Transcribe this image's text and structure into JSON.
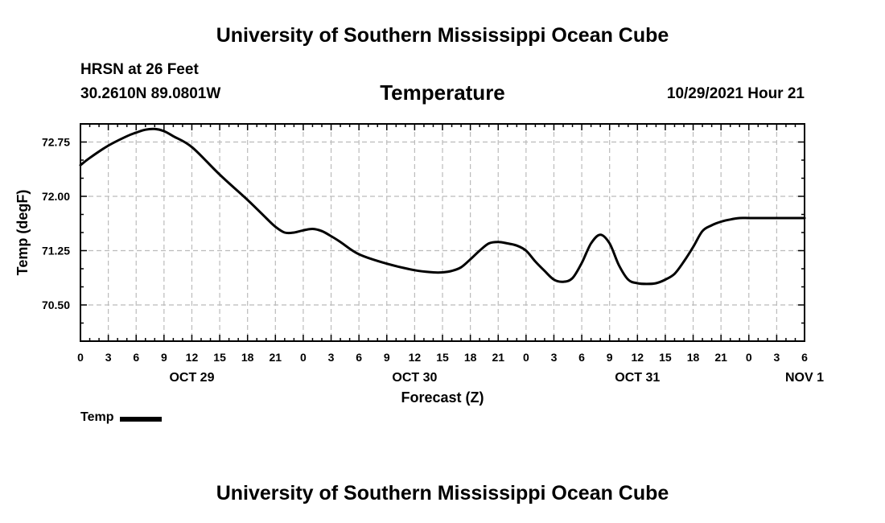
{
  "header": {
    "title": "University of Southern Mississippi Ocean Cube",
    "station": "HRSN at 26 Feet",
    "coordinates": "30.2610N  89.0801W",
    "variable": "Temperature",
    "timestamp": "10/29/2021 Hour 21"
  },
  "footer": {
    "title": "University of Southern Mississippi Ocean Cube"
  },
  "chart_data": {
    "type": "line",
    "title": "Temperature",
    "xlabel": "Forecast (Z)",
    "ylabel": "Temp (degF)",
    "xlim": [
      0,
      78
    ],
    "ylim": [
      70.0,
      73.0
    ],
    "x_tick_labels": [
      "0",
      "3",
      "6",
      "9",
      "12",
      "15",
      "18",
      "21",
      "0",
      "3",
      "6",
      "9",
      "12",
      "15",
      "18",
      "21",
      "0",
      "3",
      "6",
      "9",
      "12",
      "15",
      "18",
      "21",
      "0",
      "3",
      "6"
    ],
    "y_ticks": [
      70.5,
      71.25,
      72.0,
      72.75
    ],
    "y_tick_labels": [
      "70.50",
      "71.25",
      "72.00",
      "72.75"
    ],
    "date_labels": [
      {
        "label": "OCT 29",
        "hour": 12
      },
      {
        "label": "OCT 30",
        "hour": 36
      },
      {
        "label": "OCT 31",
        "hour": 60
      },
      {
        "label": "NOV 1",
        "hour": 78
      }
    ],
    "grid": true,
    "series": [
      {
        "name": "Temp",
        "color": "#000000",
        "x": [
          0,
          1,
          3,
          5,
          6,
          7,
          8,
          9,
          10,
          12,
          15,
          18,
          20,
          21,
          22,
          23,
          24,
          25,
          26,
          27,
          28,
          30,
          33,
          36,
          38,
          39,
          40,
          41,
          42,
          43,
          44,
          45,
          46,
          47,
          48,
          49,
          50,
          51,
          52,
          53,
          54,
          55,
          56,
          57,
          58,
          59,
          60,
          61,
          62,
          63,
          64,
          65,
          66,
          67,
          68,
          69,
          70,
          71,
          72,
          73,
          74,
          75,
          76,
          77,
          78
        ],
        "values": [
          72.43,
          72.53,
          72.7,
          72.83,
          72.88,
          72.92,
          72.93,
          72.9,
          72.83,
          72.68,
          72.3,
          71.95,
          71.7,
          71.58,
          71.5,
          71.5,
          71.53,
          71.55,
          71.52,
          71.45,
          71.37,
          71.2,
          71.07,
          70.98,
          70.95,
          70.95,
          70.97,
          71.02,
          71.13,
          71.25,
          71.35,
          71.37,
          71.35,
          71.32,
          71.25,
          71.1,
          70.97,
          70.85,
          70.82,
          70.87,
          71.08,
          71.35,
          71.47,
          71.35,
          71.05,
          70.85,
          70.8,
          70.79,
          70.8,
          70.85,
          70.93,
          71.1,
          71.3,
          71.52,
          71.6,
          71.65,
          71.68,
          71.7,
          71.7,
          71.7,
          71.7,
          71.7,
          71.7,
          71.7,
          71.7
        ]
      }
    ],
    "legend": {
      "label": "Temp",
      "placement": "bottom-left"
    }
  }
}
